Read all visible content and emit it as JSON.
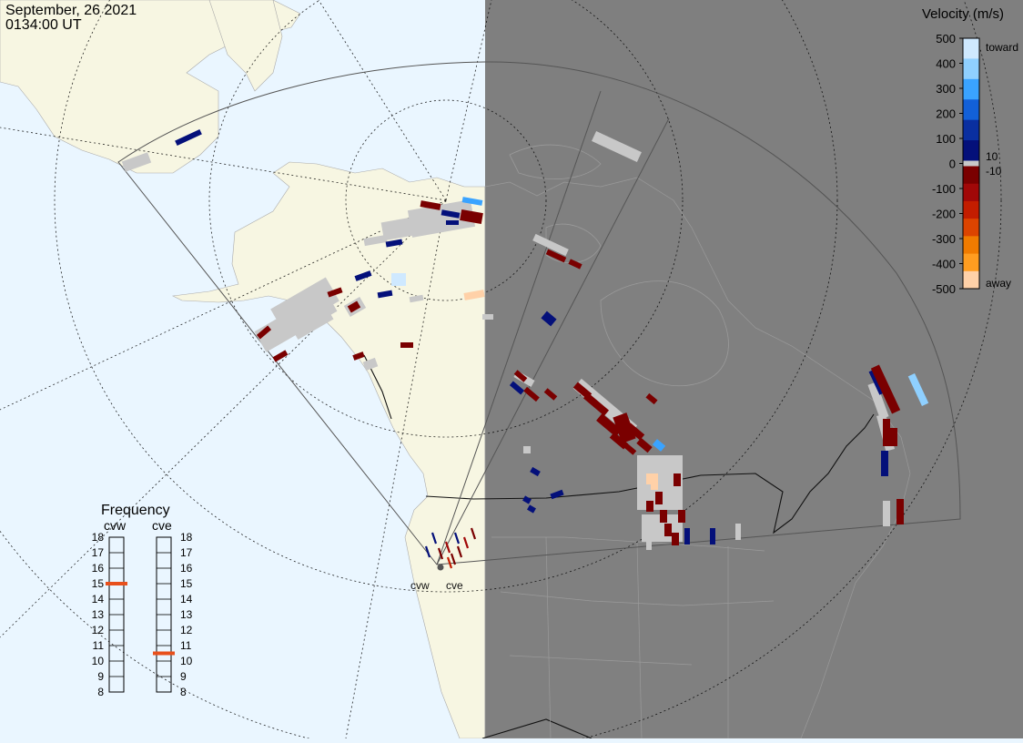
{
  "header": {
    "date": "September, 26 2021",
    "time": "0134:00 UT"
  },
  "velocity_scale": {
    "title": "Velocity (m/s)",
    "ticks": [
      "500",
      "400",
      "300",
      "200",
      "100",
      "0",
      "-100",
      "-200",
      "-300",
      "-400",
      "-500"
    ],
    "near_zero": [
      "10",
      "-10"
    ],
    "toward_label": "toward",
    "away_label": "away",
    "colors": {
      "toward": [
        "#cfe9ff",
        "#8fd0ff",
        "#3aa3ff",
        "#1260d8",
        "#0a2fa0",
        "#04107a"
      ],
      "away": [
        "#7a0000",
        "#a10808",
        "#c31d00",
        "#dc4400",
        "#f07b00",
        "#ff9d20",
        "#ffd1a8"
      ],
      "ground_scatter": "#c8c8c8"
    }
  },
  "frequency_panel": {
    "title": "Frequency",
    "radars": [
      {
        "name": "cvw",
        "freq_mhz": 15
      },
      {
        "name": "cve",
        "freq_mhz": 10.5
      }
    ],
    "scale_labels": [
      "18",
      "17",
      "16",
      "15",
      "14",
      "13",
      "12",
      "11",
      "10",
      "9",
      "8"
    ],
    "marker_color": "#e8501c"
  },
  "map": {
    "radar_labels": [
      "cvw",
      "cve"
    ],
    "colors": {
      "ocean": "#eaf6ff",
      "land": "#f6f6e4",
      "night": "#7f7f7f",
      "night_land": "#808080"
    }
  }
}
